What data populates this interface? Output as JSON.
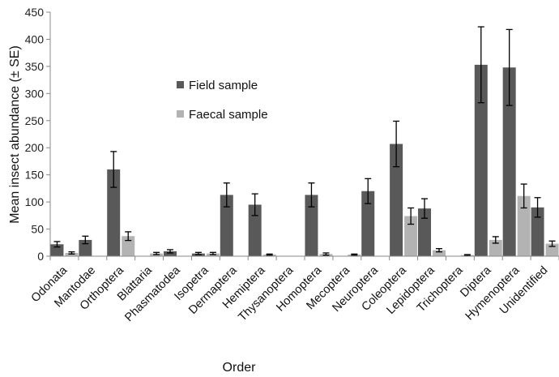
{
  "chart_data": {
    "type": "bar",
    "title": "",
    "xlabel": "Order",
    "ylabel": "Mean insect abundance (± SE)",
    "ylim": [
      0,
      450
    ],
    "yticks": [
      0,
      50,
      100,
      150,
      200,
      250,
      300,
      350,
      400,
      450
    ],
    "grid": false,
    "legend": "inside-left-top",
    "categories": [
      "Odonata",
      "Mantodae",
      "Orthoptera",
      "Blattaria",
      "Phasmatodea",
      "Isopetra",
      "Dermaptera",
      "Hemiptera",
      "Thysanoptera",
      "Homoptera",
      "Mecoptera",
      "Neuroptera",
      "Coleoptera",
      "Lepidoptera",
      "Trichoptera",
      "Diptera",
      "Hymenoptera",
      "Unidentified"
    ],
    "series": [
      {
        "name": "Field sample",
        "color": "#595959",
        "values": [
          22,
          30,
          160,
          0,
          9,
          5,
          113,
          95,
          0,
          113,
          0,
          120,
          207,
          88,
          0,
          353,
          348,
          90
        ],
        "errors": [
          5,
          7,
          33,
          0,
          3,
          2,
          22,
          20,
          0,
          22,
          0,
          23,
          42,
          18,
          0,
          70,
          70,
          18
        ]
      },
      {
        "name": "Faecal sample",
        "color": "#b3b3b3",
        "values": [
          6,
          0,
          37,
          5,
          0,
          5,
          0,
          3,
          0,
          4,
          3,
          0,
          74,
          11,
          2,
          30,
          111,
          23
        ],
        "errors": [
          2,
          0,
          8,
          2,
          0,
          2,
          0,
          1,
          0,
          2,
          1,
          0,
          15,
          3,
          1,
          6,
          22,
          5
        ]
      }
    ]
  }
}
